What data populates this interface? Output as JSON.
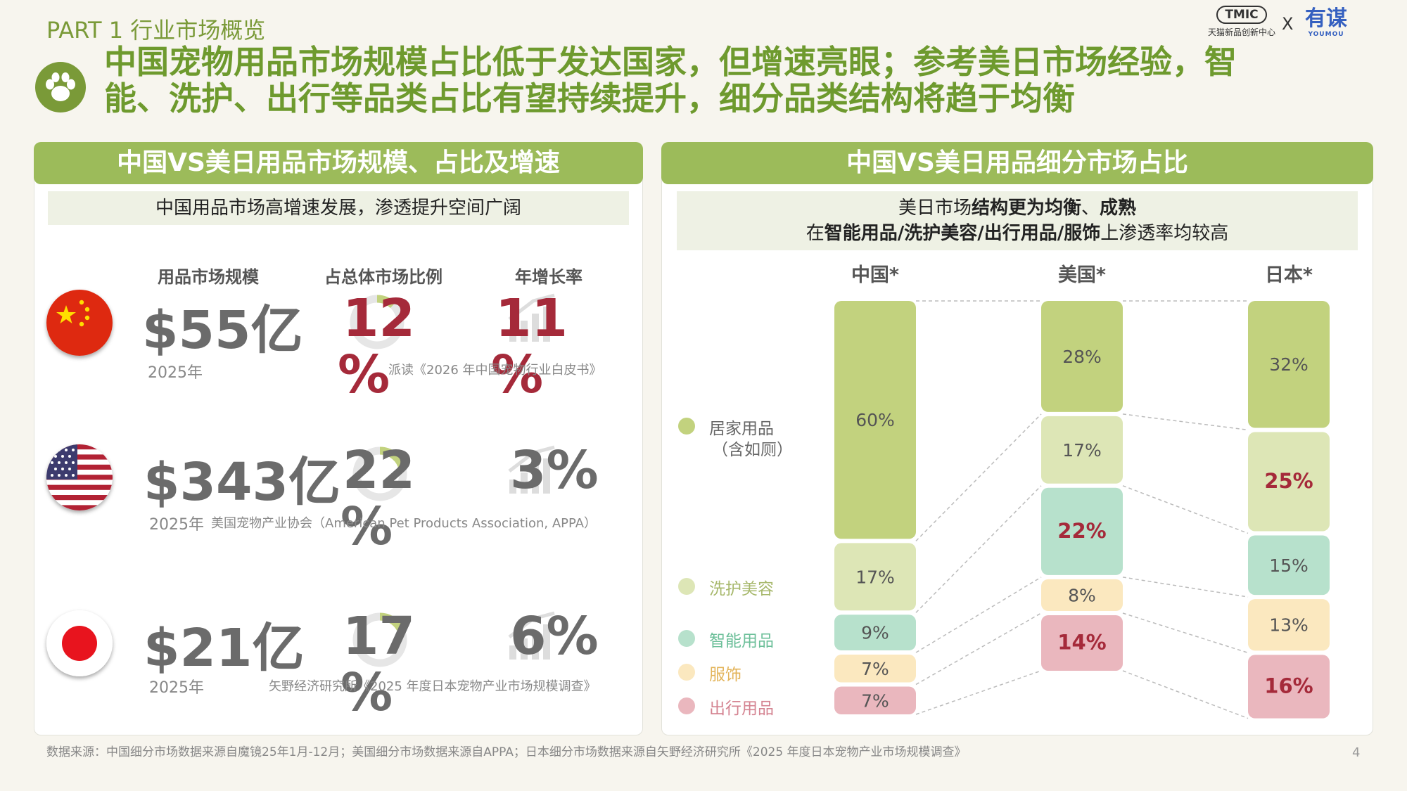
{
  "part": "PART 1 行业市场概览",
  "logos": {
    "tmic": "TMIC",
    "tmic_sub": "天猫新品创新中心",
    "x": "X",
    "youmou_cn": "有谋",
    "youmou_en": "YOUMOU"
  },
  "headline": {
    "line1": "中国宠物用品市场规模占比低于发达国家，但增速亮眼；参考美日市场经验，智",
    "line2": "能、洗护、出行等品类占比有望持续提升，细分品类结构将趋于均衡"
  },
  "left_panel": {
    "title": "中国VS美日用品市场规模、占比及增速",
    "subtitle": "中国用品市场高增速发展，渗透提升空间广阔",
    "col_size": "用品市场规模",
    "col_share": "占总体市场比例",
    "col_growth": "年增长率",
    "rows": [
      {
        "country": "china",
        "size": "$55亿",
        "share_num": "12",
        "share_pct": "%",
        "share_value": 12,
        "growth": "11",
        "growth_pct": "%",
        "year": "2025年",
        "source": "派读《2026 年中国宠物行业白皮书》"
      },
      {
        "country": "usa",
        "size": "$343亿",
        "share_num": "22",
        "share_pct": "%",
        "share_value": 22,
        "growth": "3%",
        "growth_pct": "",
        "year": "2025年",
        "source": "美国宠物产业协会（American Pet Products Association, APPA）"
      },
      {
        "country": "japan",
        "size": "$21亿",
        "share_num": "17",
        "share_pct": "%",
        "share_value": 17,
        "growth": "6%",
        "growth_pct": "",
        "year": "2025年",
        "source": "矢野经济研究所《2025 年度日本宠物产业市场规模调查》"
      }
    ]
  },
  "right_panel": {
    "title": "中国VS美日用品细分市场占比",
    "sub1_a": "美日市场",
    "sub1_b": "结构更为均衡",
    "sub1_c": "、",
    "sub1_d": "成熟",
    "sub2_a": "在",
    "sub2_b": "智能用品/洗护美容/出行用品/服饰",
    "sub2_c": "上渗透率均较高",
    "legend": [
      {
        "label": "居家用品",
        "label2": "（含如厕）",
        "color": "#c2d27e"
      },
      {
        "label": "洗护美容",
        "label2": "",
        "color": "#dde6b6"
      },
      {
        "label": "智能用品",
        "label2": "",
        "color": "#b7e1cc"
      },
      {
        "label": "服饰",
        "label2": "",
        "color": "#fbe8bf"
      },
      {
        "label": "出行用品",
        "label2": "",
        "color": "#eab7be"
      }
    ]
  },
  "chart_data": {
    "type": "bar",
    "stacked": true,
    "categories": [
      "中国*",
      "美国*",
      "日本*"
    ],
    "series": [
      {
        "name": "居家用品（含如厕）",
        "values": [
          60,
          28,
          32
        ],
        "labels": [
          "60%",
          "28%",
          "32%"
        ],
        "highlight": [
          false,
          false,
          false
        ],
        "color": "#c2d27e"
      },
      {
        "name": "洗护美容",
        "values": [
          17,
          17,
          25
        ],
        "labels": [
          "17%",
          "17%",
          "25%"
        ],
        "highlight": [
          false,
          false,
          true
        ],
        "color": "#dde6b6"
      },
      {
        "name": "智能用品",
        "values": [
          9,
          22,
          15
        ],
        "labels": [
          "9%",
          "22%",
          "15%"
        ],
        "highlight": [
          false,
          true,
          false
        ],
        "color": "#b7e1cc"
      },
      {
        "name": "服饰",
        "values": [
          7,
          8,
          13
        ],
        "labels": [
          "7%",
          "8%",
          "13%"
        ],
        "highlight": [
          false,
          false,
          false
        ],
        "color": "#fbe8bf"
      },
      {
        "name": "出行用品",
        "values": [
          7,
          14,
          16
        ],
        "labels": [
          "7%",
          "14%",
          "16%"
        ],
        "highlight": [
          false,
          true,
          true
        ],
        "color": "#eab7be"
      }
    ],
    "highlight_color": "#a52a3a"
  },
  "footer": "数据来源：中国细分市场数据来源自魔镜25年1月-12月；美国细分市场数据来源自APPA；日本细分市场数据来源自矢野经济研究所《2025 年度日本宠物产业市场规模调查》",
  "page_number": "4",
  "colors": {
    "accent_green": "#7a9a38",
    "header_green": "#9cbb5a",
    "highlight_red": "#a52a3a"
  }
}
